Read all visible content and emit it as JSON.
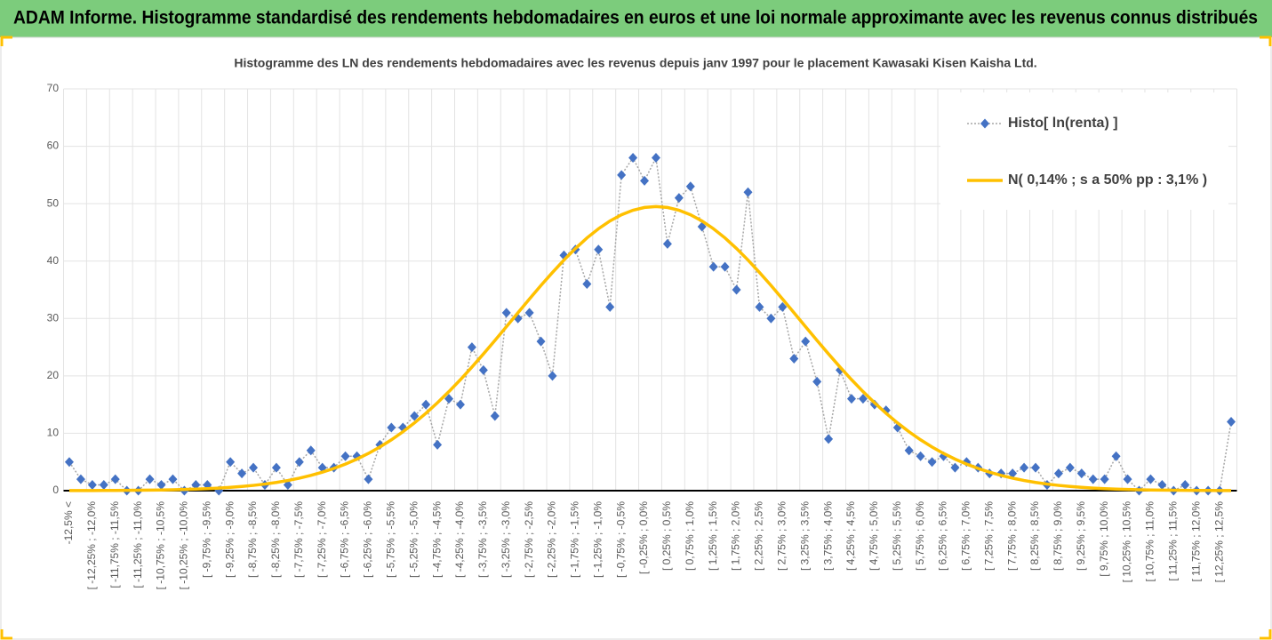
{
  "chart_data": {
    "type": "line",
    "title": "ADAM Informe. Histogramme standardisé des rendements hebdomadaires en euros et une loi normale approximante avec les revenus connus distribués",
    "subtitle": "Histogramme des LN des rendements hebdomadaires avec les revenus depuis janv 1997 pour le placement Kawasaki Kisen Kaisha Ltd.",
    "categories": [
      "-12,5% <",
      null,
      "[ -12,25% ; -12,0%",
      null,
      "[ -11,75% ; -11,5%",
      null,
      "[ -11,25% ; -11,0%",
      null,
      "[ -10,75% ; -10,5%",
      null,
      "[ -10,25% ; -10,0%",
      null,
      "[ -9,75% ; -9,5%",
      null,
      "[ -9,25% ; -9,0%",
      null,
      "[ -8,75% ; -8,5%",
      null,
      "[ -8,25% ; -8,0%",
      null,
      "[ -7,75% ; -7,5%",
      null,
      "[ -7,25% ; -7,0%",
      null,
      "[ -6,75% ; -6,5%",
      null,
      "[ -6,25% ; -6,0%",
      null,
      "[ -5,75% ; -5,5%",
      null,
      "[ -5,25% ; -5,0%",
      null,
      "[ -4,75% ; -4,5%",
      null,
      "[ -4,25% ; -4,0%",
      null,
      "[ -3,75% ; -3,5%",
      null,
      "[ -3,25% ; -3,0%",
      null,
      "[ -2,75% ; -2,5%",
      null,
      "[ -2,25% ; -2,0%",
      null,
      "[ -1,75% ; -1,5%",
      null,
      "[ -1,25% ; -1,0%",
      null,
      "[ -0,75% ; -0,5%",
      null,
      "[ -0,25% ; 0,0%",
      null,
      "[ 0,25% ; 0,5%",
      null,
      "[ 0,75% ; 1,0%",
      null,
      "[ 1,25% ; 1,5%",
      null,
      "[ 1,75% ; 2,0%",
      null,
      "[ 2,25% ; 2,5%",
      null,
      "[ 2,75% ; 3,0%",
      null,
      "[ 3,25% ; 3,5%",
      null,
      "[ 3,75% ; 4,0%",
      null,
      "[ 4,25% ; 4,5%",
      null,
      "[ 4,75% ; 5,0%",
      null,
      "[ 5,25% ; 5,5%",
      null,
      "[ 5,75% ; 6,0%",
      null,
      "[ 6,25% ; 6,5%",
      null,
      "[ 6,75% ; 7,0%",
      null,
      "[ 7,25% ; 7,5%",
      null,
      "[ 7,75% ; 8,0%",
      null,
      "[ 8,25% ; 8,5%",
      null,
      "[ 8,75% ; 9,0%",
      null,
      "[ 9,25% ; 9,5%",
      null,
      "[ 9,75% ; 10,0%",
      null,
      "[ 10,25% ; 10,5%",
      null,
      "[ 10,75% ; 11,0%",
      null,
      "[ 11,25% ; 11,5%",
      null,
      "[ 11,75% ; 12,0%",
      null,
      "[ 12,25% ; 12,5%",
      null
    ],
    "series": [
      {
        "name": "Histo[ ln(renta) ]",
        "color": "#4472c4",
        "marker": "diamond",
        "line": "dotted",
        "values": [
          5,
          2,
          1,
          1,
          2,
          0,
          0,
          2,
          1,
          2,
          0,
          1,
          1,
          0,
          5,
          3,
          4,
          1,
          4,
          1,
          5,
          7,
          4,
          4,
          6,
          6,
          2,
          8,
          11,
          11,
          13,
          15,
          8,
          16,
          15,
          25,
          21,
          13,
          31,
          30,
          31,
          26,
          20,
          41,
          42,
          36,
          42,
          32,
          55,
          58,
          54,
          58,
          43,
          51,
          53,
          46,
          39,
          39,
          35,
          52,
          32,
          30,
          32,
          23,
          26,
          19,
          9,
          21,
          16,
          16,
          15,
          14,
          11,
          7,
          6,
          5,
          6,
          4,
          5,
          4,
          3,
          3,
          3,
          4,
          4,
          1,
          3,
          4,
          3,
          2,
          2,
          6,
          2,
          0,
          2,
          1,
          0,
          1,
          0,
          0,
          0,
          12
        ]
      },
      {
        "name": "N( 0,14% ; s a 50% pp : 3,1% )",
        "color": "#ffc000",
        "marker": "none",
        "line": "solid",
        "values": [
          0.01,
          0.01,
          0.02,
          0.03,
          0.04,
          0.05,
          0.07,
          0.09,
          0.12,
          0.16,
          0.21,
          0.27,
          0.35,
          0.45,
          0.58,
          0.73,
          0.92,
          1.15,
          1.43,
          1.77,
          2.18,
          2.66,
          3.22,
          3.87,
          4.63,
          5.5,
          6.49,
          7.61,
          8.86,
          10.26,
          11.8,
          13.48,
          15.31,
          17.26,
          19.34,
          21.54,
          23.82,
          26.18,
          28.58,
          31.0,
          33.4,
          35.76,
          38.01,
          40.18,
          42.19,
          44.03,
          45.63,
          46.99,
          48.07,
          48.86,
          49.34,
          49.5,
          49.34,
          48.86,
          48.07,
          46.99,
          45.63,
          44.03,
          42.19,
          40.18,
          38.01,
          35.76,
          33.4,
          31.0,
          28.58,
          26.18,
          23.82,
          21.54,
          19.34,
          17.26,
          15.31,
          13.48,
          11.8,
          10.26,
          8.86,
          7.61,
          6.49,
          5.5,
          4.63,
          3.87,
          3.22,
          2.66,
          2.18,
          1.77,
          1.43,
          1.15,
          0.92,
          0.73,
          0.58,
          0.45,
          0.35,
          0.27,
          0.21,
          0.16,
          0.12,
          0.09,
          0.07,
          0.05,
          0.04,
          0.03,
          0.02,
          0.01
        ]
      }
    ],
    "ylim": [
      0,
      70
    ],
    "yticks": [
      0,
      10,
      20,
      30,
      40,
      50,
      60,
      70
    ],
    "grid": true,
    "legend": "top-right"
  }
}
